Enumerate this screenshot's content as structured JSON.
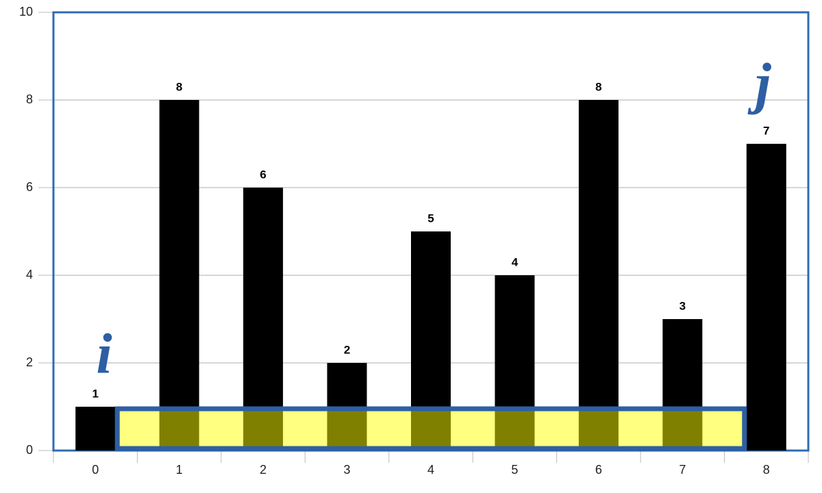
{
  "chart_data": {
    "type": "bar",
    "categories": [
      "0",
      "1",
      "2",
      "3",
      "4",
      "5",
      "6",
      "7",
      "8"
    ],
    "values": [
      1,
      8,
      6,
      2,
      5,
      4,
      8,
      3,
      7
    ],
    "color": "#000000",
    "ylim": [
      0,
      10
    ],
    "yticks": [
      0,
      2,
      4,
      6,
      8,
      10
    ],
    "grid": true,
    "annotations": [
      "i",
      "j"
    ]
  }
}
